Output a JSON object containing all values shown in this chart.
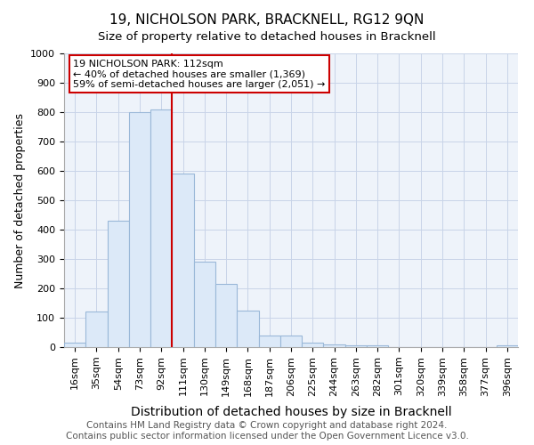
{
  "title": "19, NICHOLSON PARK, BRACKNELL, RG12 9QN",
  "subtitle": "Size of property relative to detached houses in Bracknell",
  "xlabel": "Distribution of detached houses by size in Bracknell",
  "ylabel": "Number of detached properties",
  "bar_labels": [
    "16sqm",
    "35sqm",
    "54sqm",
    "73sqm",
    "92sqm",
    "111sqm",
    "130sqm",
    "149sqm",
    "168sqm",
    "187sqm",
    "206sqm",
    "225sqm",
    "244sqm",
    "263sqm",
    "282sqm",
    "301sqm",
    "320sqm",
    "339sqm",
    "358sqm",
    "377sqm",
    "396sqm"
  ],
  "bar_heights": [
    15,
    120,
    430,
    800,
    810,
    590,
    290,
    215,
    125,
    40,
    40,
    15,
    10,
    5,
    5,
    0,
    0,
    0,
    0,
    0,
    5
  ],
  "bar_color": "#dce9f8",
  "bar_edge_color": "#9ab8d8",
  "vline_color": "#cc0000",
  "annotation_text": "19 NICHOLSON PARK: 112sqm\n← 40% of detached houses are smaller (1,369)\n59% of semi-detached houses are larger (2,051) →",
  "annotation_box_color": "#ffffff",
  "annotation_box_edge": "#cc0000",
  "plot_bg_color": "#eef3fa",
  "grid_color": "#c8d4e8",
  "ylim": [
    0,
    1000
  ],
  "yticks": [
    0,
    100,
    200,
    300,
    400,
    500,
    600,
    700,
    800,
    900,
    1000
  ],
  "footer1": "Contains HM Land Registry data © Crown copyright and database right 2024.",
  "footer2": "Contains public sector information licensed under the Open Government Licence v3.0.",
  "title_fontsize": 11,
  "subtitle_fontsize": 9.5,
  "xlabel_fontsize": 10,
  "ylabel_fontsize": 9,
  "tick_fontsize": 8,
  "annotation_fontsize": 8,
  "footer_fontsize": 7.5
}
